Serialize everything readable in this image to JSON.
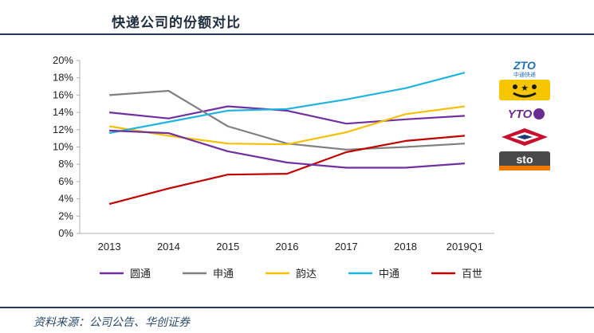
{
  "header": {
    "title": "快递公司的份额对比"
  },
  "footer": {
    "source": "资料来源：公司公告、华创证券"
  },
  "logos": {
    "zto": {
      "text": "ZTO",
      "sub": "中通快递",
      "color": "#1f6fb5"
    },
    "yunda": {
      "text": "★",
      "color": "#f6c700"
    },
    "yto": {
      "text": "YTO",
      "color": "#6b2c91"
    },
    "bestex": {
      "text": "",
      "color": "#c8102e"
    },
    "sto": {
      "text": "sto",
      "color": "#4a4a4a"
    }
  },
  "chart_data": {
    "type": "line",
    "categories": [
      "2013",
      "2014",
      "2015",
      "2016",
      "2017",
      "2018",
      "2019Q1"
    ],
    "yticks": [
      "0%",
      "2%",
      "4%",
      "6%",
      "8%",
      "10%",
      "12%",
      "14%",
      "16%",
      "18%",
      "20%"
    ],
    "ylim": [
      0,
      20
    ],
    "grid": false,
    "legend_position": "bottom",
    "series": [
      {
        "name": "圆通",
        "color": "#7030a0",
        "values": [
          14.0,
          13.3,
          14.7,
          14.2,
          12.7,
          13.2,
          13.6
        ]
      },
      {
        "name": "申通",
        "color": "#808080",
        "values": [
          16.0,
          16.5,
          12.4,
          10.4,
          9.7,
          10.0,
          10.4
        ]
      },
      {
        "name": "韵达",
        "color": "#f5c000",
        "values": [
          12.4,
          11.3,
          10.4,
          10.3,
          11.7,
          13.8,
          14.7
        ]
      },
      {
        "name": "中通",
        "color": "#1fb4e0",
        "values": [
          11.6,
          12.9,
          14.2,
          14.4,
          15.5,
          16.8,
          18.6
        ]
      },
      {
        "name": "百世",
        "color": "#c00000",
        "values": [
          3.4,
          5.2,
          6.8,
          6.9,
          9.4,
          10.7,
          11.3
        ]
      },
      {
        "name": "",
        "color": "#7030a0",
        "values": [
          11.9,
          11.6,
          9.5,
          8.2,
          7.6,
          7.6,
          8.1
        ]
      }
    ]
  }
}
